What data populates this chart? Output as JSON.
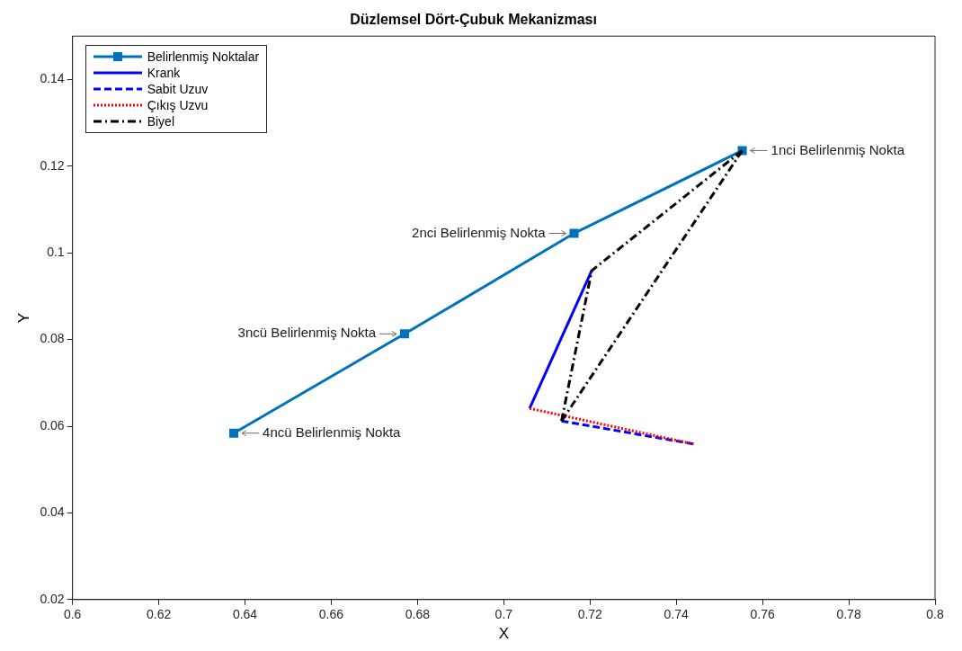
{
  "chart_data": {
    "type": "line",
    "title": "Düzlemsel Dört-Çubuk Mekanizması",
    "xlabel": "X",
    "ylabel": "Y",
    "xlim": [
      0.6,
      0.8
    ],
    "xticks": [
      0.6,
      0.62,
      0.64,
      0.66,
      0.68,
      0.7,
      0.72,
      0.74,
      0.76,
      0.78,
      0.8
    ],
    "ylim": [
      0.02,
      0.15
    ],
    "yticks": [
      0.02,
      0.04,
      0.06,
      0.08,
      0.1,
      0.12,
      0.14
    ],
    "grid": false,
    "legend": "top left",
    "series": [
      {
        "name": "Belirlenmiş Noktalar",
        "color": "#0072bd",
        "marker": "square",
        "line_style": "solid",
        "x": [
          0.7553,
          0.7163,
          0.677,
          0.6374
        ],
        "values": [
          0.1236,
          0.1045,
          0.0813,
          0.0584
        ]
      },
      {
        "name": "Krank",
        "color": "#0000ff",
        "marker": "none",
        "line_style": "solid",
        "x": [
          0.706,
          0.7204
        ],
        "values": [
          0.0641,
          0.0959
        ]
      },
      {
        "name": "Sabit Uzuv",
        "color": "#0000ff",
        "marker": "none",
        "line_style": "dashed",
        "x": [
          0.7134,
          0.744
        ],
        "values": [
          0.0612,
          0.0559
        ]
      },
      {
        "name": "Çıkış Uzvu",
        "color": "#ff0000",
        "marker": "none",
        "line_style": "dotted",
        "x": [
          0.706,
          0.744
        ],
        "values": [
          0.0641,
          0.0559
        ]
      },
      {
        "name": "Biyel",
        "color": "#000000",
        "marker": "none",
        "line_style": "dashdot",
        "x": [
          0.7134,
          0.7204,
          0.7553
        ],
        "values": [
          0.0612,
          0.0959,
          0.1236
        ]
      },
      {
        "color": "#000000",
        "marker": "none",
        "line_style": "dashdot",
        "x": [
          0.7134,
          0.7553
        ],
        "values": [
          0.0612,
          0.1236
        ]
      }
    ],
    "annotations": [
      {
        "text": "1nci Belirlenmiş Nokta",
        "x": 0.7553,
        "y": 0.1236
      },
      {
        "text": "2nci Belirlenmiş Nokta",
        "x": 0.7163,
        "y": 0.1045
      },
      {
        "text": "3ncü Belirlenmiş Nokta",
        "x": 0.677,
        "y": 0.0813
      },
      {
        "text": "4ncü Belirlenmiş Nokta",
        "x": 0.6374,
        "y": 0.0584
      }
    ]
  }
}
